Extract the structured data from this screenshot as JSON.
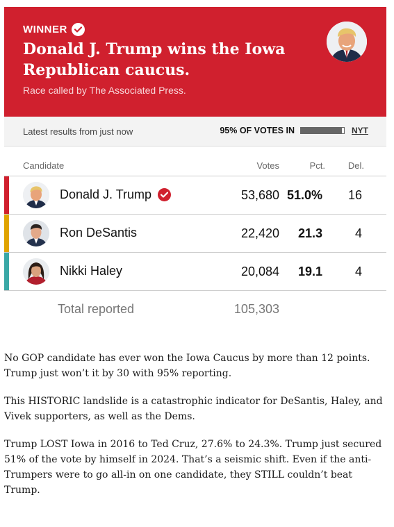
{
  "banner": {
    "winner_label": "WINNER",
    "headline": "Donald J. Trump wins the Iowa Republican caucus.",
    "byline": "Race called by The Associated Press.",
    "color": "#d0202e"
  },
  "status": {
    "latest": "Latest results from just now",
    "votes_in": "95% OF VOTES IN",
    "reporting_fraction": 0.95,
    "source": "NYT"
  },
  "table": {
    "headers": {
      "candidate": "Candidate",
      "votes": "Votes",
      "pct": "Pct.",
      "del": "Del."
    },
    "rows": [
      {
        "name": "Donald J. Trump",
        "votes": "53,680",
        "pct": "51.0%",
        "del": "16",
        "color": "#d0202e",
        "winner": true
      },
      {
        "name": "Ron DeSantis",
        "votes": "22,420",
        "pct": "21.3",
        "del": "4",
        "color": "#e0a400",
        "winner": false
      },
      {
        "name": "Nikki Haley",
        "votes": "20,084",
        "pct": "19.1",
        "del": "4",
        "color": "#3aa8a6",
        "winner": false
      }
    ],
    "total_label": "Total reported",
    "total_votes": "105,303"
  },
  "post": {
    "paragraphs": [
      "No GOP candidate has ever won the Iowa Caucus by more than 12 points. Trump just won’t it by 30 with 95% reporting.",
      "This HISTORIC landslide is a catastrophic indicator for DeSantis, Haley, and Vivek supporters, as well as the Dems.",
      "Trump LOST Iowa in 2016 to Ted Cruz, 27.6% to 24.3%. Trump just secured 51% of the vote by himself in 2024. That’s a seismic shift. Even if the anti-Trumpers were to go all-in on one candidate, they STILL couldn’t beat Trump."
    ]
  }
}
